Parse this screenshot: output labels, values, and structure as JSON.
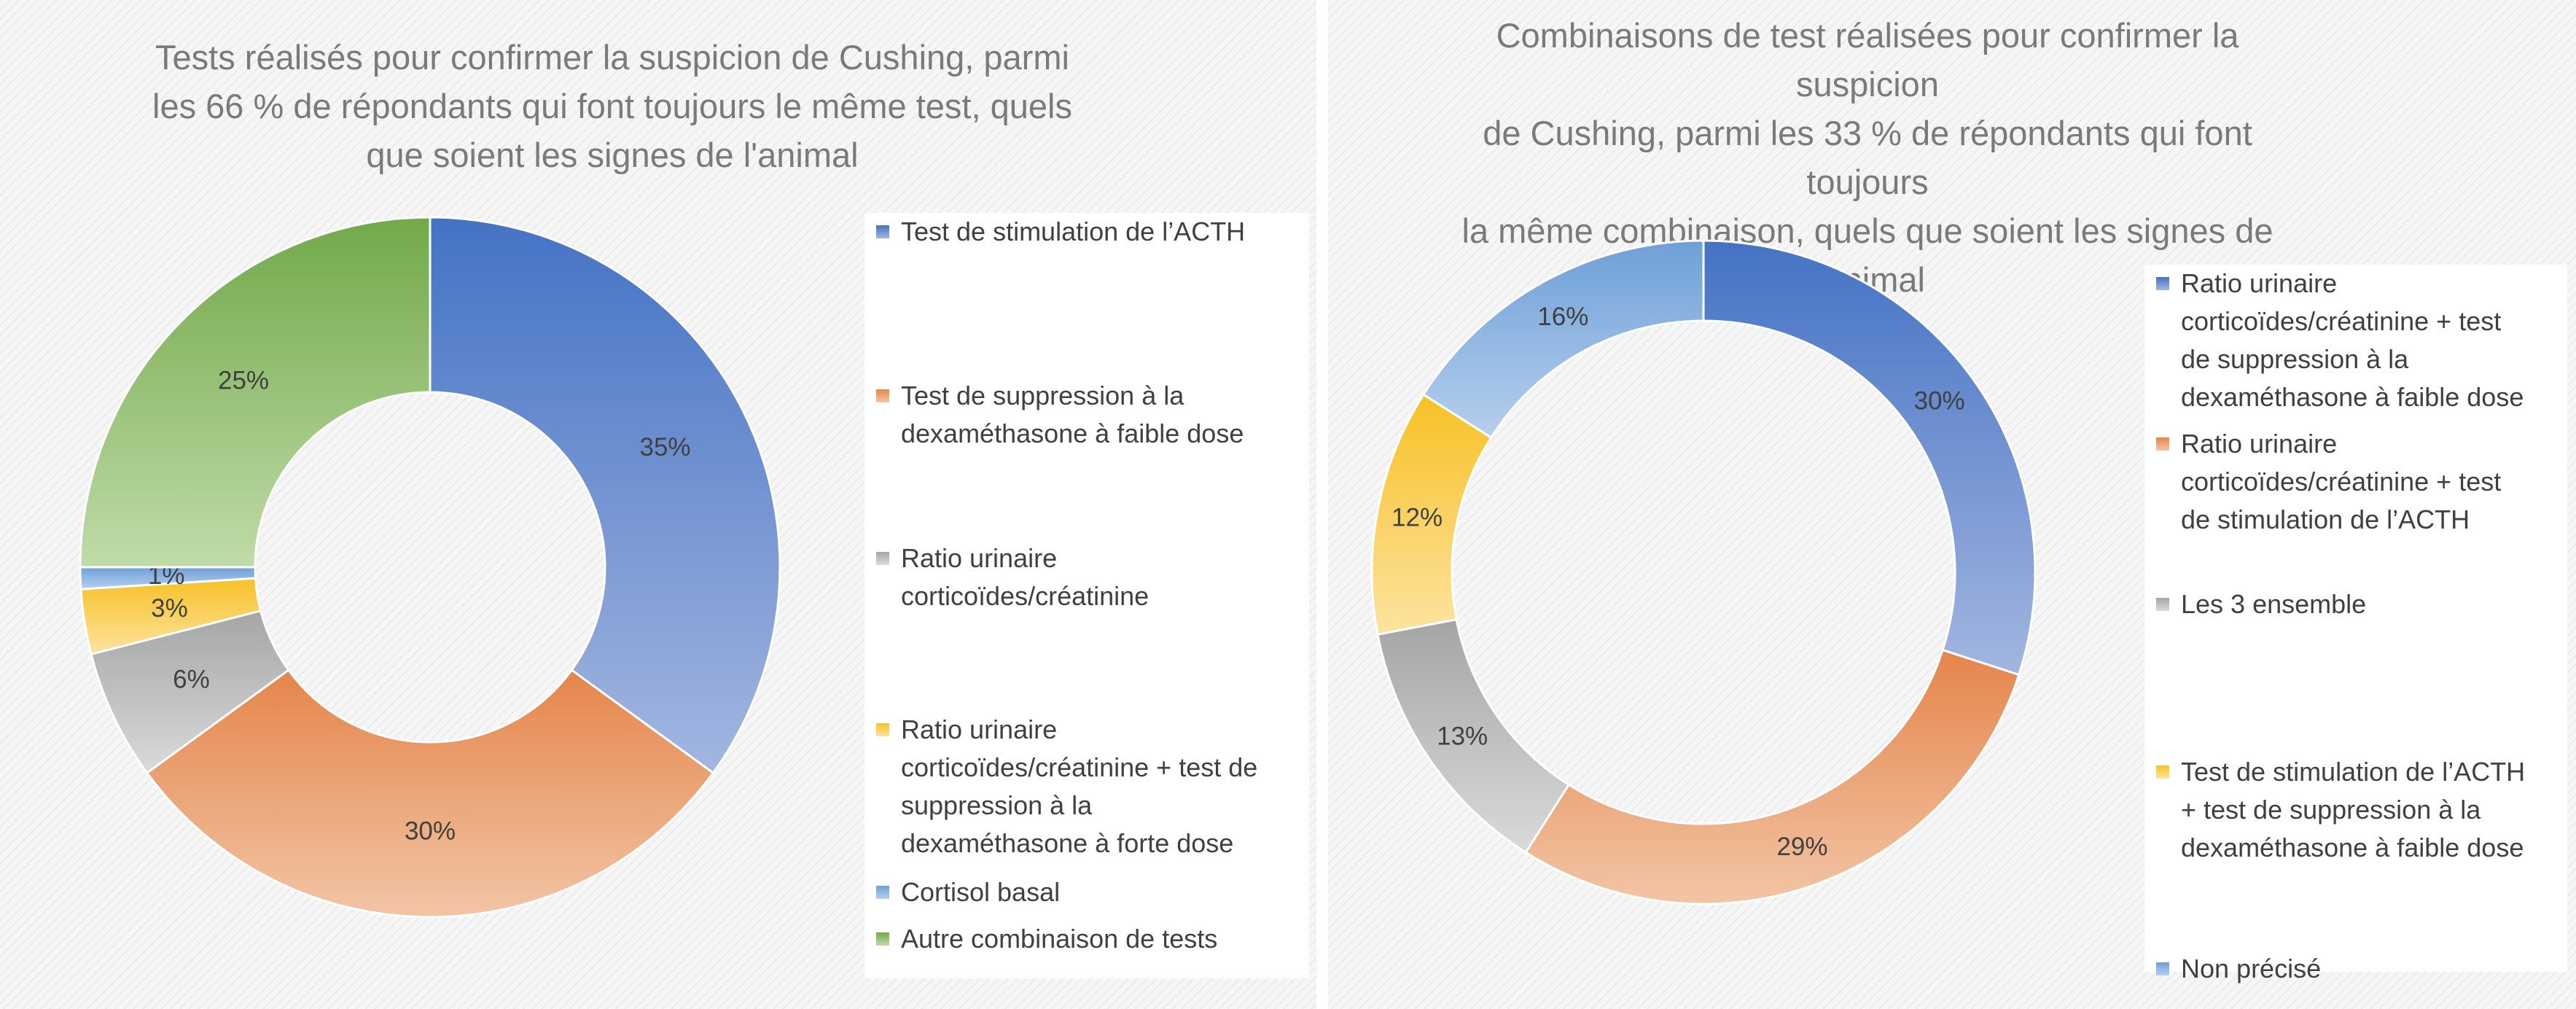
{
  "chart_data": [
    {
      "type": "pie",
      "variant": "donut",
      "title": "Tests réalisés pour confirmer la suspicion de Cushing, parmi les 66 % de répondants qui font toujours le même test, quels que soient les signes de l'animal",
      "title_lines": [
        "Tests réalisés pour confirmer la suspicion de Cushing, parmi",
        "les 66 % de répondants qui font toujours le même test, quels",
        "que soient les signes de l'animal"
      ],
      "legend_position": "right",
      "slices": [
        {
          "label": "Test de stimulation de l’ACTH",
          "label_lines": [
            "Test de stimulation de l’ACTH"
          ],
          "value": 35,
          "display": "35%",
          "color": "#4472c4",
          "color_light": "#a3b6e0"
        },
        {
          "label": "Test de suppression à la dexaméthasone à faible dose",
          "label_lines": [
            "Test de suppression à la",
            "dexaméthasone à faible dose"
          ],
          "value": 30,
          "display": "30%",
          "color": "#e5854a",
          "color_light": "#f2c5a6"
        },
        {
          "label": "Ratio urinaire corticoïdes/créatinine",
          "label_lines": [
            "Ratio urinaire",
            "corticoïdes/créatinine"
          ],
          "value": 6,
          "display": "6%",
          "color": "#a5a5a5",
          "color_light": "#dadada"
        },
        {
          "label": "Ratio urinaire corticoïdes/créatinine + test de suppression à la dexaméthasone à forte dose",
          "label_lines": [
            "Ratio urinaire",
            "corticoïdes/créatinine + test de",
            "suppression à la",
            "dexaméthasone à forte dose"
          ],
          "value": 3,
          "display": "3%",
          "color": "#f7c125",
          "color_light": "#fde3a0"
        },
        {
          "label": "Cortisol basal",
          "label_lines": [
            "Cortisol basal"
          ],
          "value": 1,
          "display": "1%",
          "color": "#6ea0d8",
          "color_light": "#b6cfed"
        },
        {
          "label": "Autre combinaison de tests",
          "label_lines": [
            "Autre combinaison de tests"
          ],
          "value": 25,
          "display": "25%",
          "color": "#72a94a",
          "color_light": "#c0dba8"
        }
      ]
    },
    {
      "type": "pie",
      "variant": "donut",
      "title": "Combinaisons de test réalisées pour confirmer la suspicion de Cushing, parmi les 33 % de répondants qui font toujours la même combinaison, quels que soient les signes de l'animal",
      "title_lines": [
        "Combinaisons de test réalisées pour confirmer la suspicion",
        "de Cushing, parmi les 33 % de répondants qui font toujours",
        "la même combinaison, quels que soient les signes de",
        "l'animal"
      ],
      "legend_position": "right",
      "slices": [
        {
          "label": "Ratio urinaire corticoïdes/créatinine + test de suppression à la dexaméthasone à faible dose",
          "label_lines": [
            "Ratio urinaire",
            "corticoïdes/créatinine + test",
            "de suppression à la",
            "dexaméthasone à faible dose"
          ],
          "value": 30,
          "display": "30%",
          "color": "#4472c4",
          "color_light": "#a3b6e0"
        },
        {
          "label": "Ratio urinaire corticoïdes/créatinine + test de stimulation de l’ACTH",
          "label_lines": [
            "Ratio urinaire",
            "corticoïdes/créatinine + test",
            "de stimulation de l’ACTH"
          ],
          "value": 29,
          "display": "29%",
          "color": "#e5854a",
          "color_light": "#f2c5a6"
        },
        {
          "label": "Les 3 ensemble",
          "label_lines": [
            "Les 3 ensemble"
          ],
          "value": 13,
          "display": "13%",
          "color": "#a5a5a5",
          "color_light": "#dadada"
        },
        {
          "label": "Test de stimulation de l’ACTH + test de suppression à la dexaméthasone à faible dose",
          "label_lines": [
            "Test de stimulation de l’ACTH",
            "+ test de suppression à la",
            "dexaméthasone à faible dose"
          ],
          "value": 12,
          "display": "12%",
          "color": "#f7c125",
          "color_light": "#fde3a0"
        },
        {
          "label": "Non précisé",
          "label_lines": [
            "Non précisé"
          ],
          "value": 16,
          "display": "16%",
          "color": "#6ea0d8",
          "color_light": "#b6cfed"
        }
      ]
    }
  ]
}
